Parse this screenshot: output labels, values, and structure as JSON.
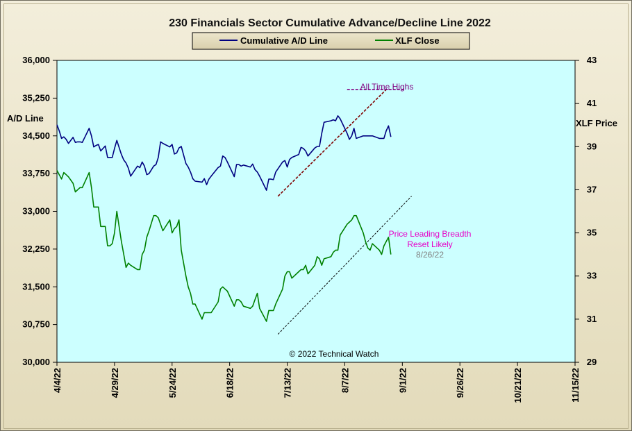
{
  "chart_data": {
    "type": "line",
    "title": "230 Financials  Sector Cumulative  Advance/Decline  Line 2022",
    "ylabel_left": "A/D Line",
    "ylabel_right": "XLF Price",
    "copyright": "© 2022 Technical Watch",
    "x_ticks": [
      "4/4/22",
      "4/29/22",
      "5/24/22",
      "6/18/22",
      "7/13/22",
      "8/7/22",
      "9/1/22",
      "9/26/22",
      "10/21/22",
      "11/15/22"
    ],
    "x_range_days": [
      0,
      225
    ],
    "y_left_ticks": [
      "36,000",
      "35,250",
      "34,500",
      "33,750",
      "33,000",
      "32,250",
      "31,500",
      "30,750",
      "30,000"
    ],
    "ylim_left": [
      30000,
      36000
    ],
    "y_right_ticks": [
      "43",
      "41",
      "39",
      "37",
      "35",
      "33",
      "31",
      "29"
    ],
    "ylim_right": [
      29,
      43
    ],
    "legend": [
      {
        "name": "Cumulative A/D Line",
        "color": "#000080"
      },
      {
        "name": "XLF Close",
        "color": "#008000"
      }
    ],
    "grid": false,
    "plot_background": "#ccffff",
    "series": [
      {
        "name": "Cumulative A/D Line",
        "axis": "left",
        "color": "#000080",
        "x": [
          0,
          1,
          2,
          3,
          4,
          5,
          7,
          8,
          9,
          10,
          11,
          14,
          15,
          16,
          17,
          18,
          19,
          21,
          22,
          23,
          24,
          25,
          26,
          28,
          29,
          30,
          31,
          32,
          35,
          36,
          37,
          38,
          39,
          40,
          42,
          43,
          44,
          45,
          46,
          49,
          50,
          51,
          52,
          53,
          54,
          56,
          57,
          58,
          59,
          60,
          63,
          64,
          65,
          66,
          67,
          70,
          71,
          72,
          73,
          74,
          77,
          78,
          79,
          80,
          81,
          84,
          85,
          86,
          87,
          88,
          91,
          92,
          93,
          94,
          95,
          98,
          99,
          100,
          101,
          102,
          105,
          106,
          107,
          108,
          109,
          112,
          113,
          114,
          115,
          116,
          119,
          120,
          121,
          122,
          123,
          126,
          127,
          128,
          129,
          130,
          133,
          134,
          135,
          136,
          137,
          140,
          141,
          142,
          143,
          144,
          145
        ],
        "y": [
          34720,
          34600,
          34450,
          34480,
          34430,
          34350,
          34470,
          34370,
          34380,
          34380,
          34370,
          34650,
          34500,
          34280,
          34310,
          34330,
          34200,
          34300,
          34070,
          34070,
          34070,
          34250,
          34410,
          34130,
          34020,
          33960,
          33860,
          33700,
          33900,
          33870,
          33980,
          33900,
          33730,
          33750,
          33900,
          33930,
          34070,
          34380,
          34350,
          34280,
          34330,
          34140,
          34160,
          34260,
          34290,
          33950,
          33880,
          33780,
          33650,
          33600,
          33580,
          33650,
          33530,
          33640,
          33700,
          33870,
          33900,
          34100,
          34070,
          33980,
          33690,
          33930,
          33930,
          33900,
          33920,
          33880,
          33940,
          33830,
          33780,
          33700,
          33420,
          33640,
          33640,
          33630,
          33780,
          33980,
          34010,
          33880,
          34030,
          34070,
          34130,
          34270,
          34250,
          34200,
          34100,
          34260,
          34290,
          34290,
          34550,
          34770,
          34800,
          34820,
          34800,
          34900,
          34840,
          34550,
          34430,
          34500,
          34650,
          34450,
          34500,
          34500,
          34500,
          34500,
          34500,
          34450,
          34450,
          34450,
          34600,
          34700,
          34480
        ]
      },
      {
        "name": "XLF Close",
        "axis": "right",
        "color": "#008000",
        "x": [
          0,
          1,
          2,
          3,
          4,
          5,
          7,
          8,
          9,
          10,
          11,
          14,
          15,
          16,
          17,
          18,
          19,
          21,
          22,
          23,
          24,
          25,
          26,
          28,
          29,
          30,
          31,
          32,
          35,
          36,
          37,
          38,
          39,
          40,
          42,
          43,
          44,
          45,
          46,
          49,
          50,
          51,
          52,
          53,
          54,
          56,
          57,
          58,
          59,
          60,
          63,
          64,
          65,
          66,
          67,
          70,
          71,
          72,
          73,
          74,
          77,
          78,
          79,
          80,
          81,
          84,
          85,
          86,
          87,
          88,
          91,
          92,
          93,
          94,
          95,
          98,
          99,
          100,
          101,
          102,
          105,
          106,
          107,
          108,
          109,
          112,
          113,
          114,
          115,
          116,
          119,
          120,
          121,
          122,
          123,
          126,
          127,
          128,
          129,
          130,
          133,
          134,
          135,
          136,
          137,
          140,
          141,
          142,
          143,
          144,
          145
        ],
        "y": [
          37.9,
          37.7,
          37.5,
          37.8,
          37.7,
          37.6,
          37.3,
          36.9,
          37.0,
          37.1,
          37.1,
          37.8,
          37.1,
          36.2,
          36.2,
          36.2,
          35.3,
          35.3,
          34.4,
          34.4,
          34.5,
          35.0,
          36.0,
          34.6,
          34.0,
          33.4,
          33.6,
          33.5,
          33.3,
          33.3,
          34.0,
          34.2,
          34.8,
          35.1,
          35.8,
          35.8,
          35.7,
          35.4,
          35.1,
          35.6,
          35.0,
          35.2,
          35.3,
          35.6,
          34.2,
          33.0,
          32.5,
          32.2,
          31.7,
          31.7,
          31.0,
          31.3,
          31.3,
          31.3,
          31.3,
          31.8,
          32.4,
          32.5,
          32.4,
          32.3,
          31.6,
          31.9,
          31.9,
          31.8,
          31.6,
          31.5,
          31.6,
          31.9,
          32.2,
          31.5,
          30.9,
          31.4,
          31.4,
          31.4,
          31.7,
          32.4,
          33.0,
          33.2,
          33.2,
          32.9,
          33.2,
          33.3,
          33.3,
          33.5,
          33.1,
          33.5,
          33.9,
          33.8,
          33.5,
          33.8,
          33.9,
          34.1,
          34.2,
          34.2,
          34.9,
          35.4,
          35.5,
          35.6,
          35.8,
          35.8,
          35.0,
          34.6,
          34.3,
          34.2,
          34.5,
          34.2,
          34.0,
          34.4,
          34.6,
          34.8,
          34.0
        ]
      }
    ],
    "annotations": [
      {
        "text": "All Time Highs",
        "color": "#800080"
      },
      {
        "text": "Price Leading  Breadth",
        "color": "#e600c8"
      },
      {
        "text": "Reset Likely",
        "color": "#e600c8"
      },
      {
        "text": "8/26/22",
        "color": "#808080"
      }
    ]
  }
}
